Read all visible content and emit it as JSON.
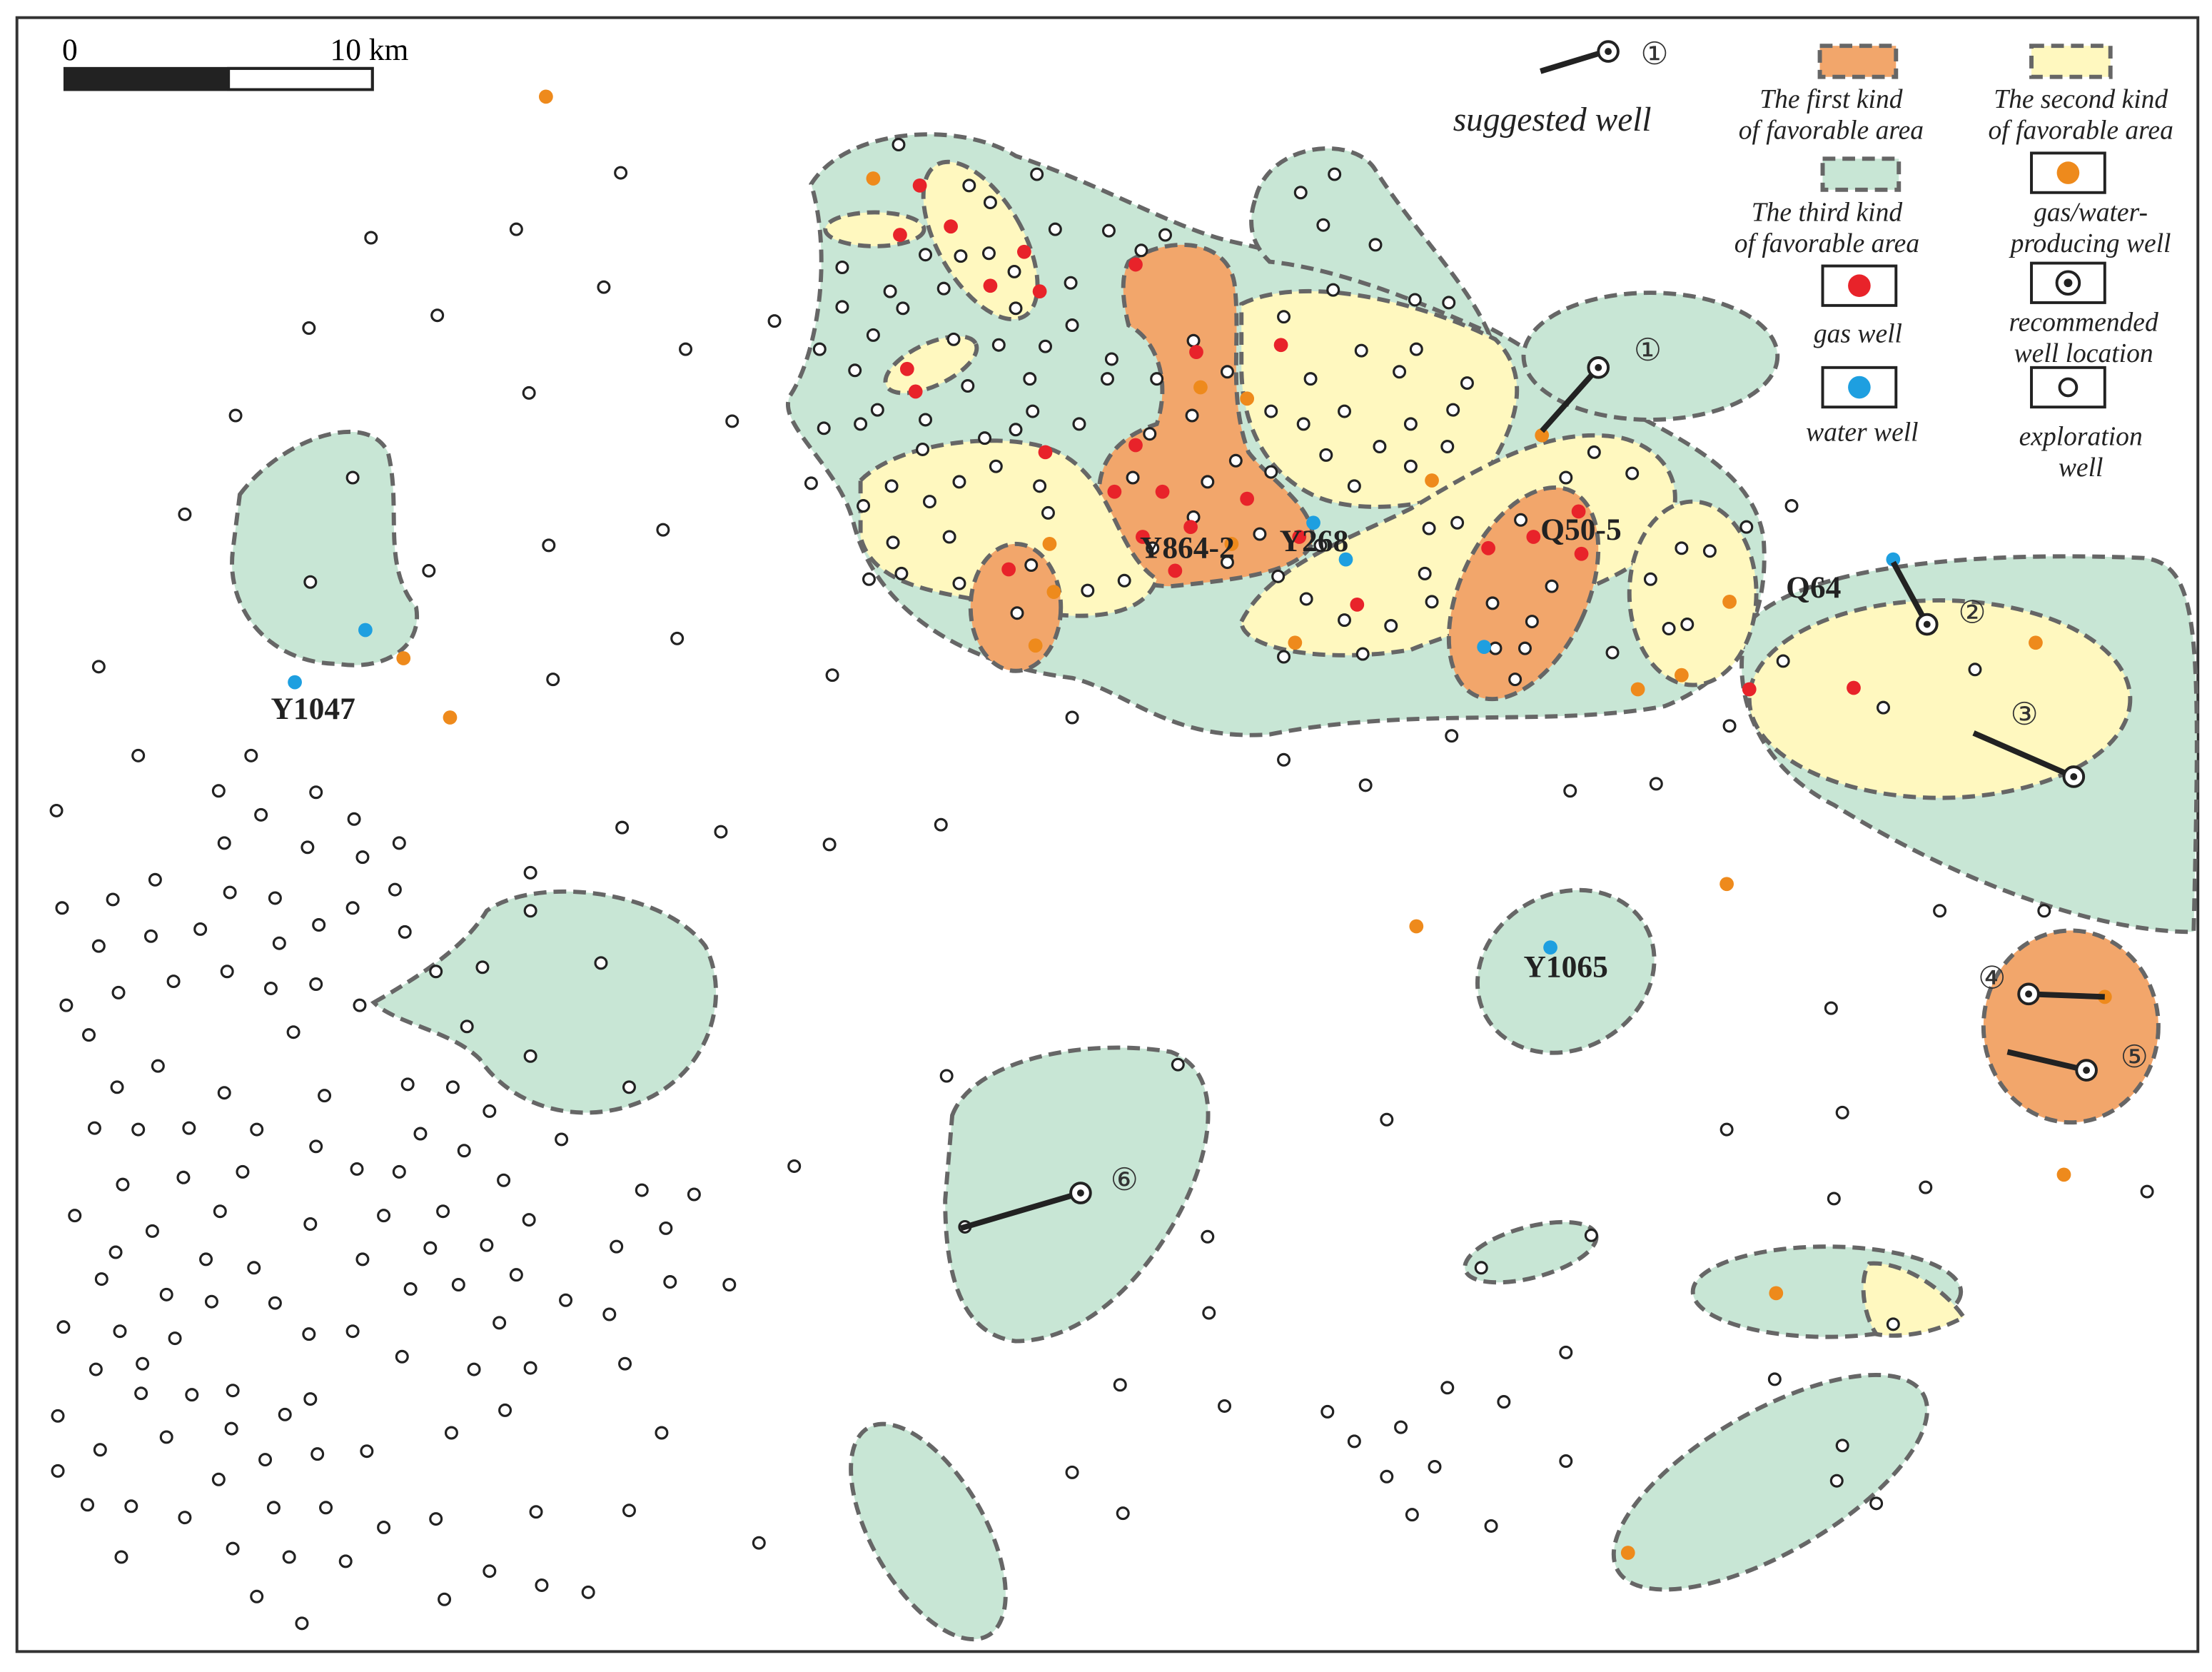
{
  "scale_bar": {
    "start": "0",
    "end": "10 km"
  },
  "legend": {
    "suggested_well": {
      "symbol": "①",
      "label": "suggested well"
    },
    "items": [
      {
        "lines": [
          "The first kind",
          "of favorable area"
        ]
      },
      {
        "lines": [
          "The second kind",
          "of favorable area"
        ]
      },
      {
        "lines": [
          "The third kind",
          "of favorable area"
        ]
      },
      {
        "lines": [
          "gas/water-",
          "producing well"
        ]
      },
      {
        "lines": [
          "gas well"
        ]
      },
      {
        "lines": [
          "recommended",
          "well location"
        ]
      },
      {
        "lines": [
          "water well"
        ]
      },
      {
        "lines": [
          "exploration",
          "well"
        ]
      }
    ]
  },
  "well_labels": [
    "Y1047",
    "Y864-2",
    "Y268",
    "Q50-5",
    "Q64",
    "Y1065"
  ],
  "suggested_wells": [
    "①",
    "②",
    "③",
    "④",
    "⑤",
    "⑥"
  ]
}
